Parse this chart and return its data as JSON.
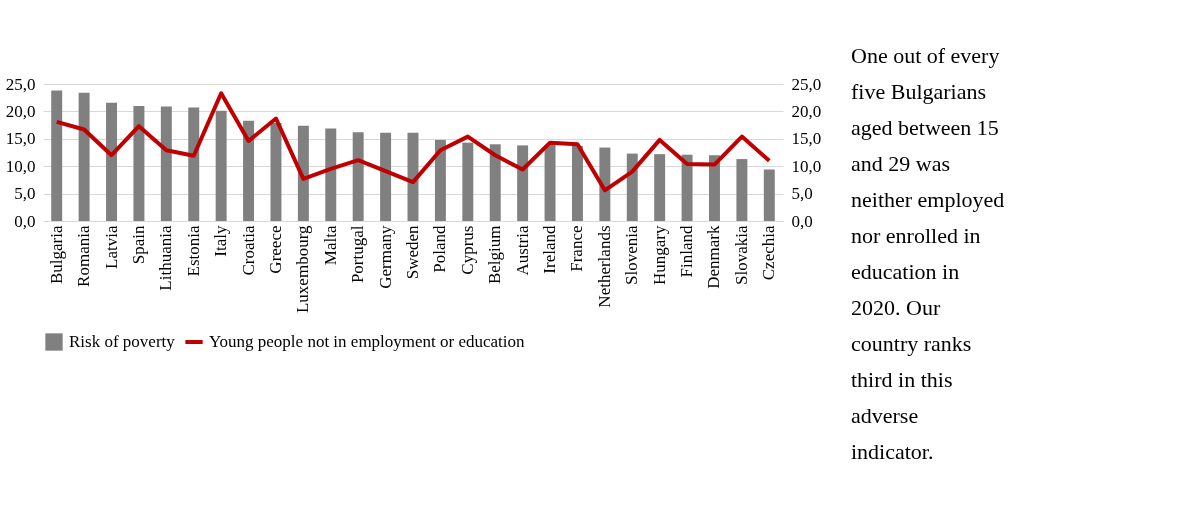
{
  "chart_data": {
    "type": "bar",
    "categories": [
      "Bulgaria",
      "Romania",
      "Latvia",
      "Spain",
      "Lithuania",
      "Estonia",
      "Italy",
      "Croatia",
      "Greece",
      "Luxembourg",
      "Malta",
      "Portugal",
      "Germany",
      "Sweden",
      "Poland",
      "Cyprus",
      "Belgium",
      "Austria",
      "Ireland",
      "France",
      "Netherlands",
      "Slovenia",
      "Hungary",
      "Finland",
      "Denmark",
      "Slovakia",
      "Czechia"
    ],
    "series": [
      {
        "name": "Risk of poverty",
        "color": "#808080",
        "values": [
          23.8,
          23.4,
          21.6,
          21.0,
          20.9,
          20.7,
          20.1,
          18.3,
          17.9,
          17.4,
          16.9,
          16.2,
          16.1,
          16.1,
          14.8,
          14.3,
          14.0,
          13.8,
          13.9,
          13.7,
          13.4,
          12.3,
          12.2,
          12.1,
          12.0,
          11.3,
          9.4
        ]
      },
      {
        "name": "Young people not in employment or education",
        "type": "line",
        "axis": "y2",
        "color": "#c00000",
        "values": [
          18.1,
          16.7,
          12.0,
          17.3,
          12.9,
          11.9,
          23.3,
          14.6,
          18.7,
          7.7,
          9.5,
          11.1,
          9.1,
          7.1,
          12.9,
          15.4,
          12.0,
          9.4,
          14.3,
          14.0,
          5.6,
          9.0,
          14.8,
          10.4,
          10.3,
          15.4,
          11.0
        ]
      }
    ],
    "ylim": [
      0,
      25
    ],
    "yticks": [
      {
        "value": 0,
        "label": "0,0"
      },
      {
        "value": 5,
        "label": "5,0"
      },
      {
        "value": 10,
        "label": "10,0"
      },
      {
        "value": 15,
        "label": "15,0"
      },
      {
        "value": 20,
        "label": "20,0"
      },
      {
        "value": 25,
        "label": "25,0"
      }
    ],
    "y2lim": [
      0,
      25
    ],
    "y2ticks": [
      {
        "value": 0,
        "label": "0,0"
      },
      {
        "value": 5,
        "label": "5,0"
      },
      {
        "value": 10,
        "label": "10,0"
      },
      {
        "value": 15,
        "label": "15,0"
      },
      {
        "value": 20,
        "label": "20,0"
      },
      {
        "value": 25,
        "label": "25,0"
      }
    ],
    "grid": "y",
    "legend": "bottom",
    "marker": "none",
    "line_style": "solid",
    "annotations": [
      "One out of every five Bulgarians aged between 15 and 29 was neither employed nor enrolled in education in 2020. Our country ranks third in this adverse indicator."
    ]
  }
}
